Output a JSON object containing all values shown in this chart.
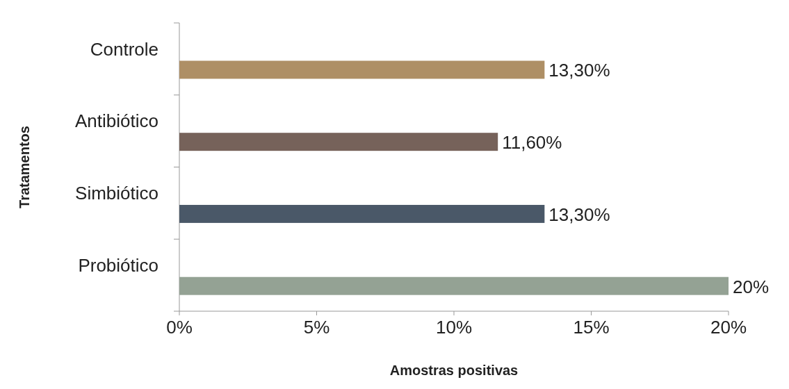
{
  "chart_data": {
    "type": "bar",
    "orientation": "horizontal",
    "xlabel": "Amostras positivas",
    "ylabel": "Tratamentos",
    "categories": [
      "Controle",
      "Antibiótico",
      "Simbiótico",
      "Probiótico"
    ],
    "values": [
      13.3,
      11.6,
      13.3,
      20
    ],
    "colors": [
      "#ae8f65",
      "#76625a",
      "#4a5868",
      "#94a294"
    ],
    "value_labels": [
      "13,30%",
      "11,60%",
      "13,30%",
      "20%"
    ],
    "xlim": [
      0,
      20
    ],
    "xticks": [
      {
        "value": 0,
        "label": "0%"
      },
      {
        "value": 5,
        "label": "5%"
      },
      {
        "value": 10,
        "label": "10%"
      },
      {
        "value": 15,
        "label": "15%"
      },
      {
        "value": 20,
        "label": "20%"
      }
    ]
  }
}
